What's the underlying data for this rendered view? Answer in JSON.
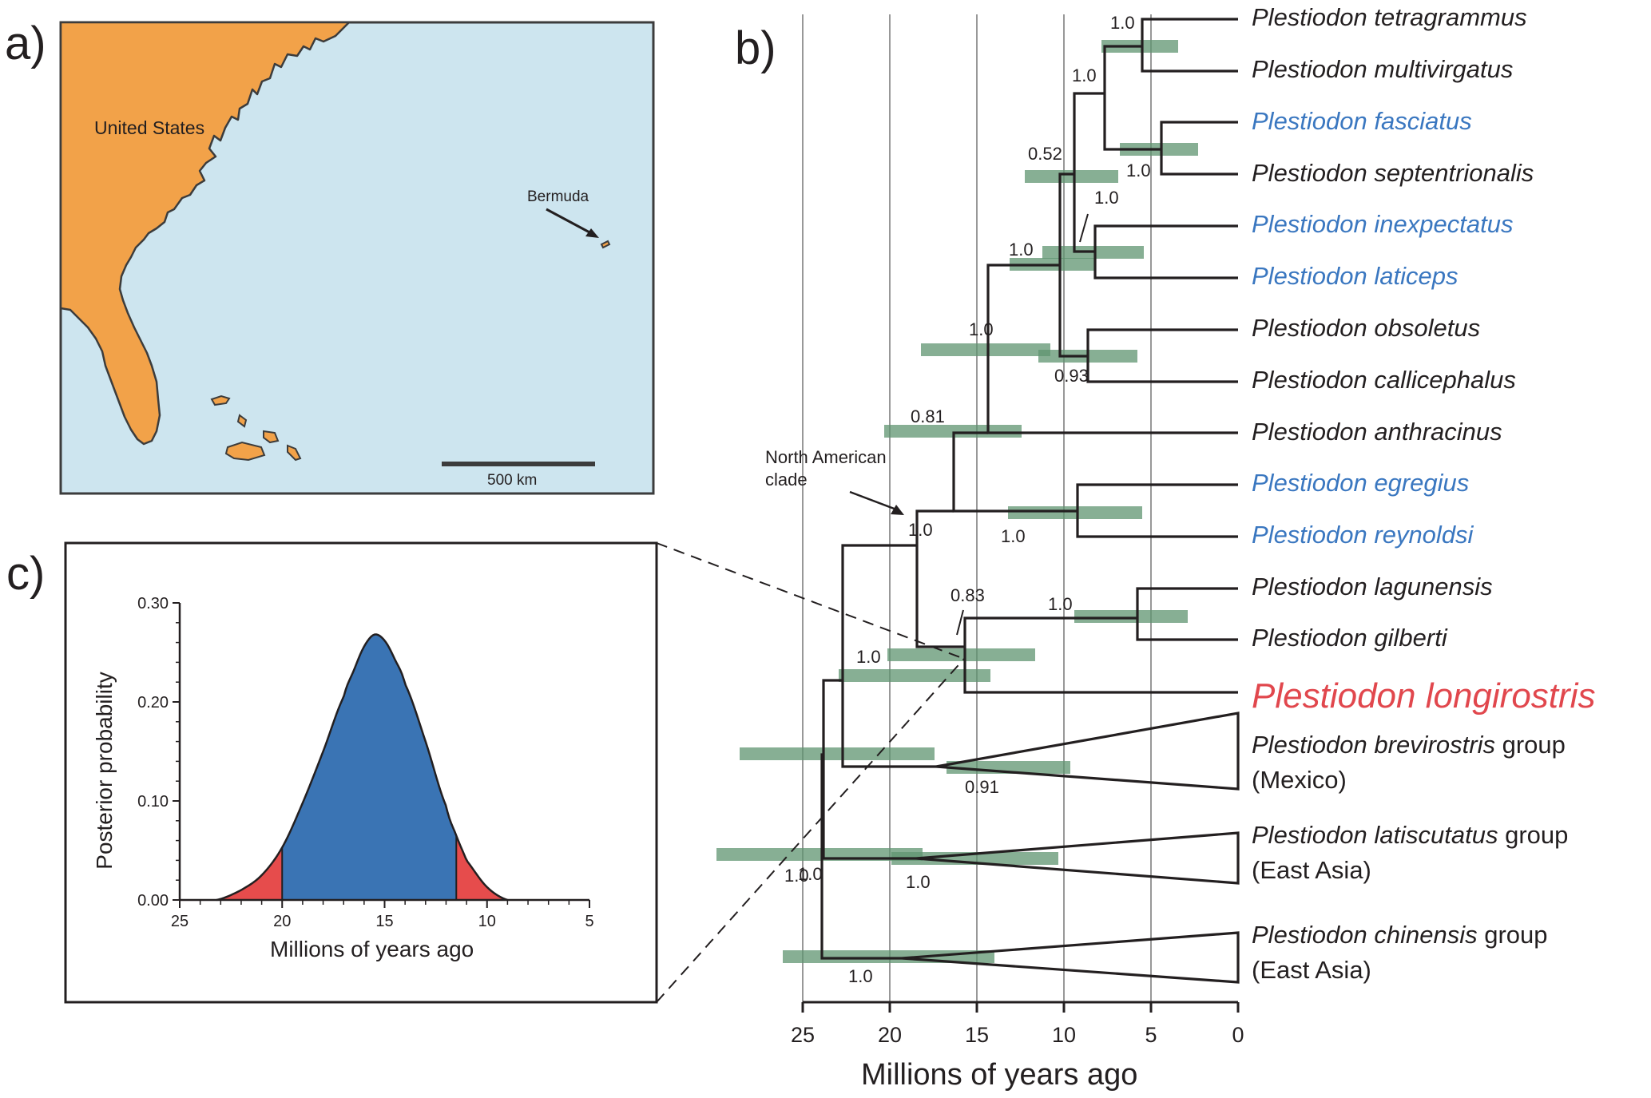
{
  "panels": {
    "a": "a)",
    "b": "b)",
    "c": "c)"
  },
  "map": {
    "country_label": "United States",
    "island_label": "Bermuda",
    "scale_label": "500 km",
    "colors": {
      "land": "#f2a249",
      "ocean": "#cde5ef",
      "border": "#3c3c3c"
    }
  },
  "tree": {
    "x_axis_label": "Millions of years ago",
    "x_ticks": [
      "25",
      "20",
      "15",
      "10",
      "5",
      "0"
    ],
    "annotation": "North American\nclade",
    "taxa": [
      {
        "parts": [
          {
            "t": "Plestiodon tetragrammus",
            "i": true
          }
        ],
        "color": "black"
      },
      {
        "parts": [
          {
            "t": "Plestiodon multivirgatus",
            "i": true
          }
        ],
        "color": "black"
      },
      {
        "parts": [
          {
            "t": "Plestiodon fasciatus",
            "i": true
          }
        ],
        "color": "blue"
      },
      {
        "parts": [
          {
            "t": "Plestiodon septentrionalis",
            "i": true
          }
        ],
        "color": "black"
      },
      {
        "parts": [
          {
            "t": "Plestiodon inexpectatus",
            "i": true
          }
        ],
        "color": "blue"
      },
      {
        "parts": [
          {
            "t": "Plestiodon laticeps",
            "i": true
          }
        ],
        "color": "blue"
      },
      {
        "parts": [
          {
            "t": "Plestiodon obsoletus",
            "i": true
          }
        ],
        "color": "black"
      },
      {
        "parts": [
          {
            "t": "Plestiodon callicephalus",
            "i": true
          }
        ],
        "color": "black"
      },
      {
        "parts": [
          {
            "t": "Plestiodon anthracinus",
            "i": true
          }
        ],
        "color": "black"
      },
      {
        "parts": [
          {
            "t": "Plestiodon egregius",
            "i": true
          }
        ],
        "color": "blue"
      },
      {
        "parts": [
          {
            "t": "Plestiodon reynoldsi",
            "i": true
          }
        ],
        "color": "blue"
      },
      {
        "parts": [
          {
            "t": "Plestiodon lagunensis",
            "i": true
          }
        ],
        "color": "black"
      },
      {
        "parts": [
          {
            "t": "Plestiodon gilberti",
            "i": true
          }
        ],
        "color": "black"
      },
      {
        "parts": [
          {
            "t": "Plestiodon longirostris",
            "i": true
          }
        ],
        "color": "red",
        "large": true
      },
      {
        "parts": [
          {
            "t": "Plestiodon brevirostris",
            "i": true
          },
          {
            "t": " group",
            "i": false
          }
        ],
        "color": "black",
        "line2": "(Mexico)"
      },
      {
        "parts": [
          {
            "t": "Plestiodon latiscutatus",
            "i": true
          },
          {
            "t": " group",
            "i": false
          }
        ],
        "color": "black",
        "line2": "(East Asia)"
      },
      {
        "parts": [
          {
            "t": "Plestiodon chinensis",
            "i": true
          },
          {
            "t": " group",
            "i": false
          }
        ],
        "color": "black",
        "line2": "(East Asia)"
      }
    ],
    "support_values": [
      "1.0",
      "1.0",
      "1.0",
      "0.52",
      "1.0",
      "1.0",
      "1.0",
      "0.93",
      "0.81",
      "1.0",
      "1.0",
      "0.83",
      "1.0",
      "1.0",
      "0.91",
      "1.0",
      "1.0",
      "1.0",
      "1.0"
    ],
    "colors": {
      "hpd_bar": "#5f9470",
      "highlight": "#e1474d",
      "blue_taxa": "#3a77c0"
    }
  },
  "chart_data": {
    "type": "area",
    "title": "",
    "xlabel": "Millions of years ago",
    "ylabel": "Posterior probability",
    "xlim": [
      25,
      5
    ],
    "ylim": [
      0,
      0.3
    ],
    "x_ticks": [
      "25",
      "20",
      "15",
      "10",
      "5"
    ],
    "y_ticks": [
      "0.00",
      "0.10",
      "0.20",
      "0.30"
    ],
    "x": [
      23.2,
      22.0,
      21.0,
      20.0,
      19.0,
      18.0,
      17.0,
      16.5,
      16.0,
      15.5,
      15.0,
      14.5,
      14.0,
      13.0,
      12.0,
      11.5,
      11.0,
      10.0,
      9.0
    ],
    "y": [
      0.0,
      0.01,
      0.025,
      0.053,
      0.098,
      0.15,
      0.205,
      0.232,
      0.256,
      0.268,
      0.262,
      0.243,
      0.218,
      0.16,
      0.095,
      0.065,
      0.04,
      0.013,
      0.0
    ],
    "hpd_interval": [
      20.0,
      11.5
    ],
    "series_colors": {
      "inside_interval": "#3a74b4",
      "outside_interval": "#e64c4c"
    }
  }
}
